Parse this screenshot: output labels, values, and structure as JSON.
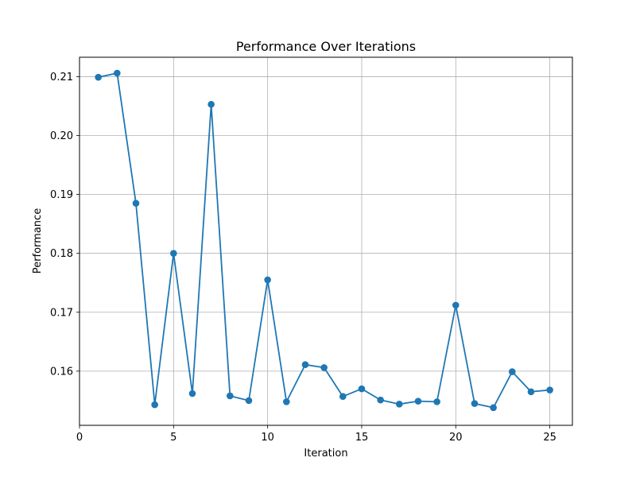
{
  "chart_data": {
    "type": "line",
    "title": "Performance Over Iterations",
    "xlabel": "Iteration",
    "ylabel": "Performance",
    "xlim": [
      0,
      26.2
    ],
    "ylim": [
      0.1508,
      0.2133
    ],
    "xticks": [
      0,
      5,
      10,
      15,
      20,
      25
    ],
    "yticks": [
      0.16,
      0.17,
      0.18,
      0.19,
      0.2,
      0.21
    ],
    "ytick_labels": [
      "0.16",
      "0.17",
      "0.18",
      "0.19",
      "0.20",
      "0.21"
    ],
    "grid": true,
    "color": "#1f77b4",
    "markers": true,
    "x": [
      1,
      2,
      3,
      4,
      5,
      6,
      7,
      8,
      9,
      10,
      11,
      12,
      13,
      14,
      15,
      16,
      17,
      18,
      19,
      20,
      21,
      22,
      23,
      24,
      25
    ],
    "y": [
      0.2099,
      0.2106,
      0.1885,
      0.1543,
      0.18,
      0.1562,
      0.2053,
      0.1558,
      0.155,
      0.1755,
      0.1548,
      0.1611,
      0.1606,
      0.1557,
      0.157,
      0.1551,
      0.1544,
      0.1549,
      0.1548,
      0.1712,
      0.1545,
      0.1538,
      0.1599,
      0.1565,
      0.1568
    ]
  }
}
